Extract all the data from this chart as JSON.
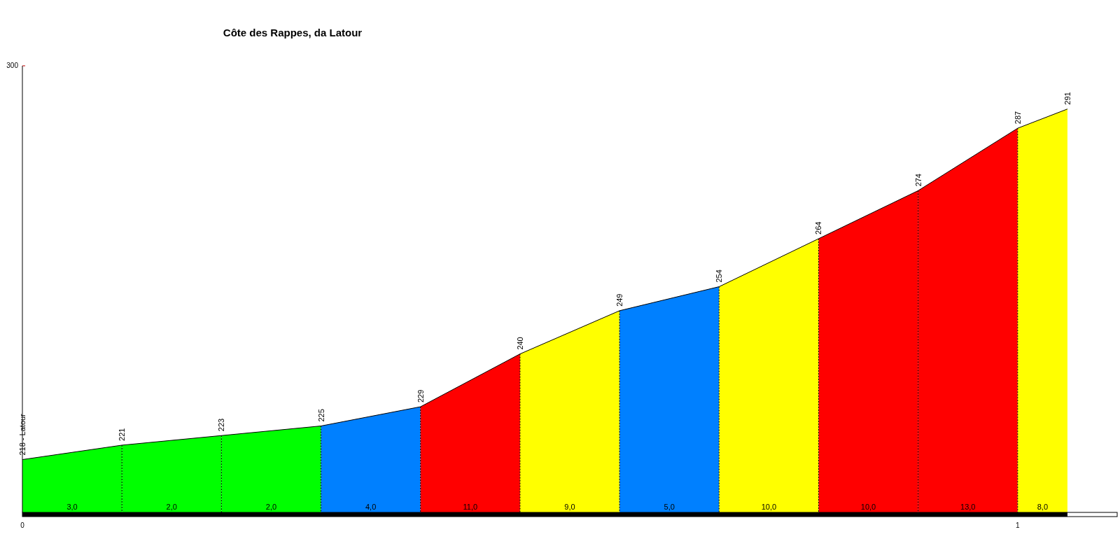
{
  "chart_data": {
    "type": "area",
    "title": "Côte des Rappes, da Latour",
    "series": [
      {
        "color": "#00ff00",
        "x": [
          0,
          0.1
        ],
        "values": [
          218,
          221
        ],
        "value_labels": [
          "218 - Latour",
          null
        ]
      },
      {
        "color": "#00ff00",
        "x": [
          0.1,
          0.2
        ],
        "values": [
          221,
          223
        ],
        "value_labels": [
          "221",
          null
        ]
      },
      {
        "color": "#00ff00",
        "x": [
          0.2,
          0.3
        ],
        "values": [
          223,
          225
        ],
        "value_labels": [
          "223",
          null
        ]
      },
      {
        "color": "#0080ff",
        "x": [
          0.3,
          0.4
        ],
        "values": [
          225,
          229
        ],
        "value_labels": [
          "225",
          null
        ]
      },
      {
        "color": "#ff0000",
        "x": [
          0.4,
          0.5
        ],
        "values": [
          229,
          240
        ],
        "value_labels": [
          "229",
          null
        ]
      },
      {
        "color": "#ffff00",
        "x": [
          0.5,
          0.6
        ],
        "values": [
          240,
          249
        ],
        "value_labels": [
          "240",
          null
        ]
      },
      {
        "color": "#0080ff",
        "x": [
          0.6,
          0.7
        ],
        "values": [
          249,
          254
        ],
        "value_labels": [
          "249",
          null
        ]
      },
      {
        "color": "#ffff00",
        "x": [
          0.7,
          0.8
        ],
        "values": [
          254,
          264
        ],
        "value_labels": [
          "254",
          null
        ]
      },
      {
        "color": "#ff0000",
        "x": [
          0.8,
          0.9
        ],
        "values": [
          264,
          274
        ],
        "value_labels": [
          "264",
          null
        ]
      },
      {
        "color": "#ff0000",
        "x": [
          0.9,
          1.0
        ],
        "values": [
          274,
          287
        ],
        "value_labels": [
          "274",
          null
        ]
      },
      {
        "color": "#ffff00",
        "x": [
          1.0,
          1.05
        ],
        "values": [
          287,
          291
        ],
        "value_labels": [
          "287",
          "291"
        ]
      }
    ],
    "annotations": [
      "3,0",
      "2,0",
      "2,0",
      "4,0",
      "11,0",
      "9,0",
      "5,0",
      "10,0",
      "10,0",
      "13,0",
      "8,0",
      "300"
    ],
    "xlim": [
      0,
      1.1
    ],
    "xticks": [
      0,
      1
    ],
    "ylim": [
      207,
      300
    ]
  }
}
